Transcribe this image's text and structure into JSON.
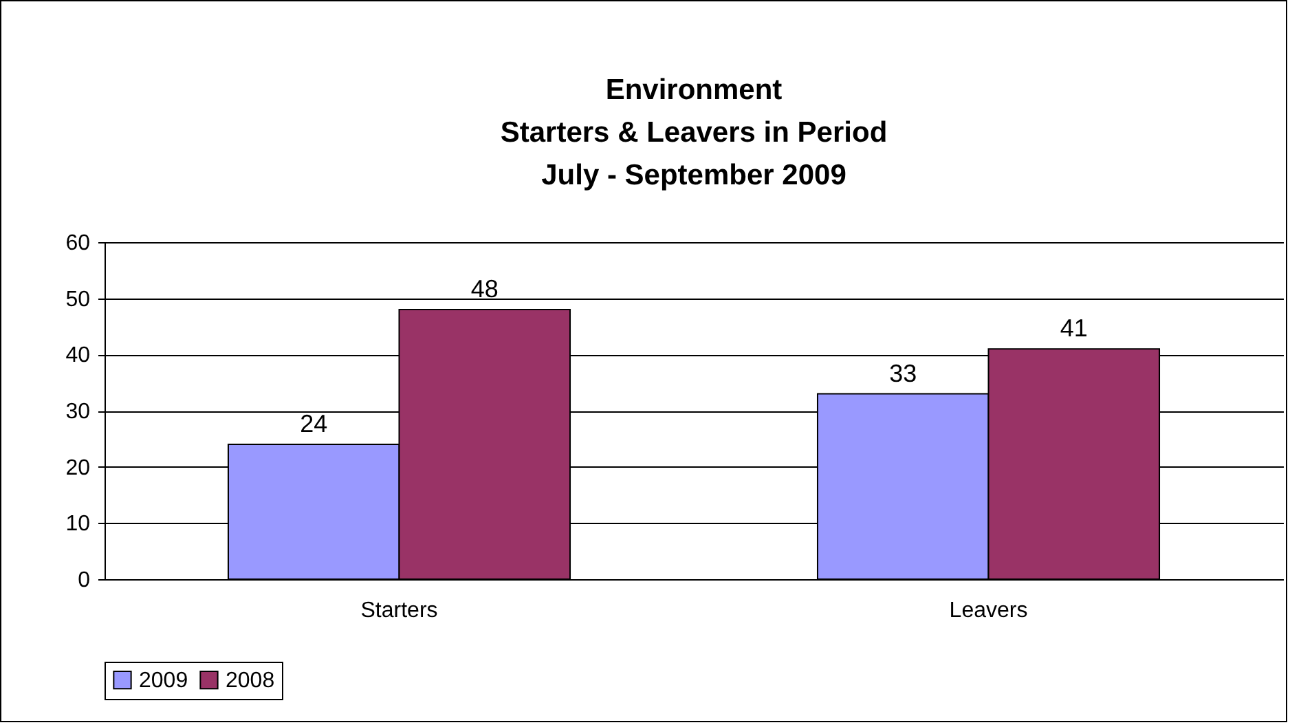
{
  "chart_data": {
    "type": "bar",
    "title": "Environment\nStarters & Leavers in Period\nJuly - September 2009",
    "categories": [
      "Starters",
      "Leavers"
    ],
    "series": [
      {
        "name": "2009",
        "color": "#9999ff",
        "values": [
          24,
          33
        ]
      },
      {
        "name": "2008",
        "color": "#993366",
        "values": [
          48,
          41
        ]
      }
    ],
    "ylim": [
      0,
      60
    ],
    "yticks": [
      0,
      10,
      20,
      30,
      40,
      50,
      60
    ],
    "grid": "y",
    "legend": "bottom",
    "data_labels": true
  }
}
